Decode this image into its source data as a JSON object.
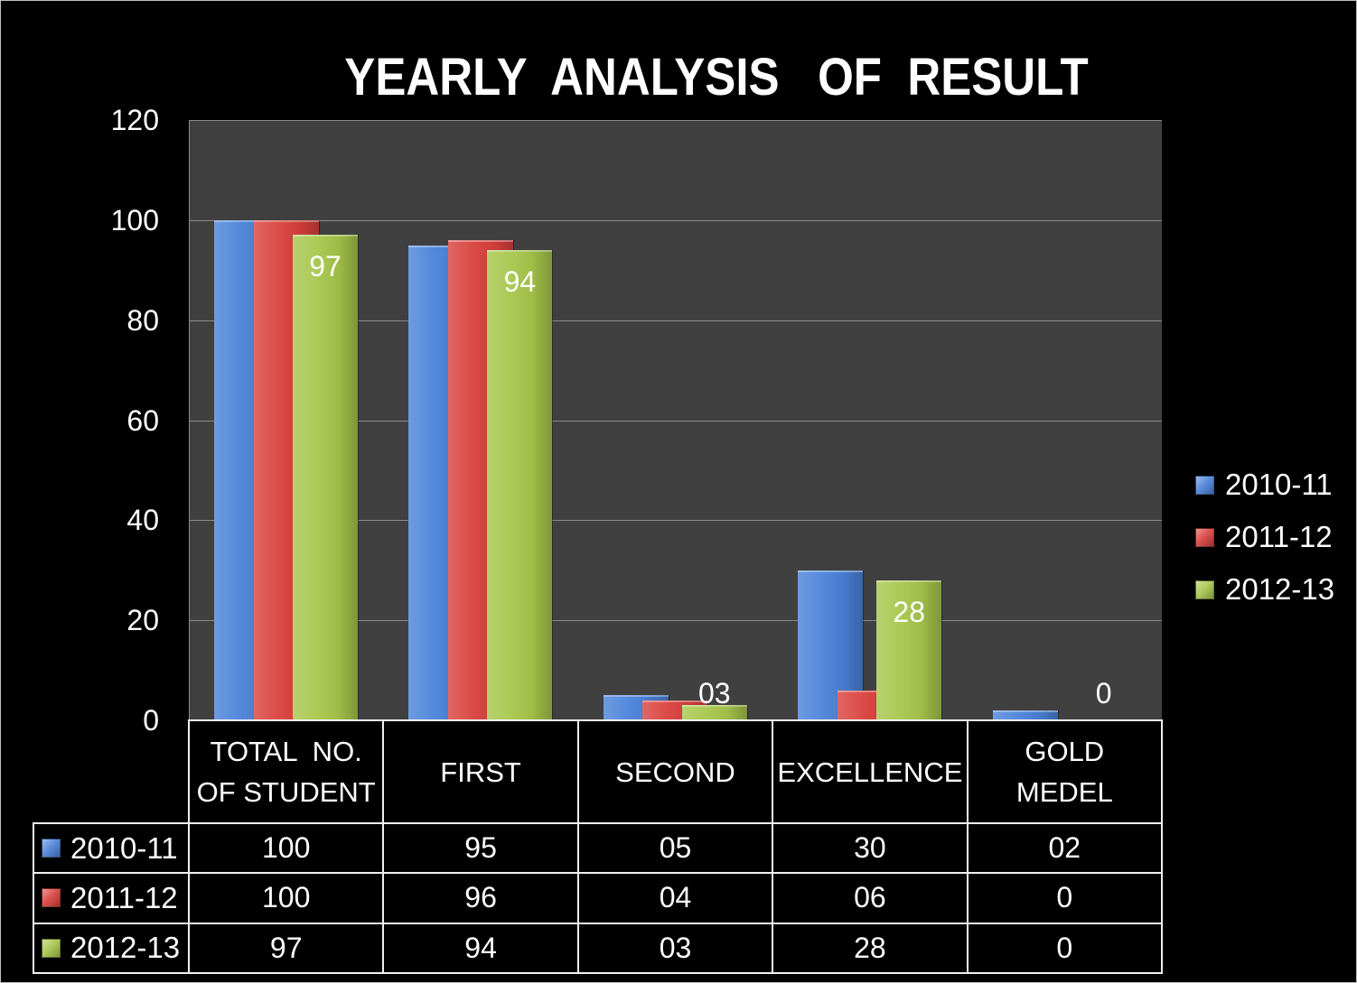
{
  "chart_data": {
    "type": "bar",
    "title": "YEARLY  ANALYSIS   OF  RESULT",
    "categories": [
      "TOTAL  NO.\nOF STUDENT",
      "FIRST",
      "SECOND",
      "EXCELLENCE",
      "GOLD\nMEDEL"
    ],
    "series": [
      {
        "name": "2010-11",
        "color": "#4a82d9",
        "values": [
          100,
          95,
          5,
          30,
          2
        ],
        "table_labels": [
          "100",
          "95",
          "05",
          "30",
          "02"
        ]
      },
      {
        "name": "2011-12",
        "color": "#d9403c",
        "values": [
          100,
          96,
          4,
          6,
          0
        ],
        "table_labels": [
          "100",
          "96",
          "04",
          "06",
          "0"
        ]
      },
      {
        "name": "2012-13",
        "color": "#a6c64a",
        "values": [
          97,
          94,
          3,
          28,
          0
        ],
        "table_labels": [
          "97",
          "94",
          "03",
          "28",
          "0"
        ],
        "data_labels": [
          "97",
          "94",
          "03",
          "28",
          "0"
        ]
      }
    ],
    "ylim": [
      0,
      120
    ],
    "yticks": [
      0,
      20,
      40,
      60,
      80,
      100,
      120
    ],
    "grid": true,
    "legend": "right",
    "data_table": true,
    "background": "#000000",
    "plot_background": "#404040"
  }
}
